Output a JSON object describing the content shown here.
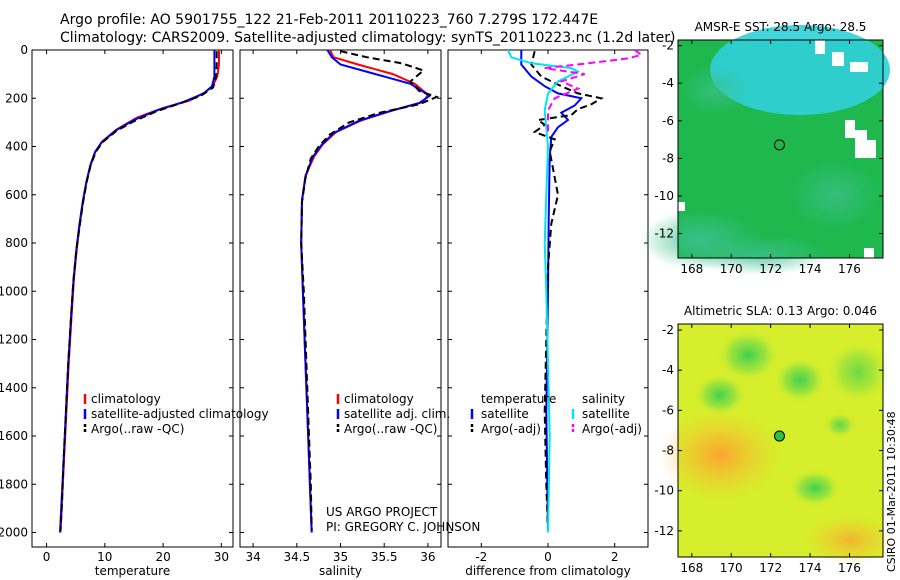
{
  "figure": {
    "title_line1": "Argo profile: AO 5901755_122 21-Feb-2011 20110223_760 7.279S 172.447E",
    "title_line2": "Climatology: CARS2009. Satellite-adjusted climatology: synTS_20110223.nc (1.2d later)",
    "credit_line1": "US ARGO PROJECT",
    "credit_line2": "PI: GREGORY C. JOHNSON",
    "vertical_stamp": "CSIRO 01-Mar-2011 10:30:48"
  },
  "colors": {
    "climatology": "#ff0000",
    "satellite": "#0000ff",
    "argo": "#000000",
    "salinity_satellite": "#00e5ee",
    "salinity_argo": "#ff00ff"
  },
  "chart_data": [
    {
      "id": "temperature",
      "type": "line",
      "xlabel": "temperature",
      "ylabel": "",
      "xlim": [
        -2.5,
        32
      ],
      "ylim": [
        2060,
        0
      ],
      "xticks": [
        0,
        10,
        20,
        30
      ],
      "yticks": [
        0,
        200,
        400,
        600,
        800,
        1000,
        1200,
        1400,
        1600,
        1800,
        2000
      ],
      "legend": {
        "position": "lower-right",
        "entries": [
          "climatology",
          "satellite-adjusted climatology",
          "Argo(..raw -QC)"
        ]
      },
      "series": [
        {
          "name": "climatology",
          "style": "solid",
          "points": [
            [
              29.6,
              0
            ],
            [
              29.6,
              60
            ],
            [
              29.3,
              110
            ],
            [
              28.5,
              150
            ],
            [
              27.2,
              175
            ],
            [
              24.5,
              210
            ],
            [
              20,
              240
            ],
            [
              15.5,
              280
            ],
            [
              12,
              330
            ],
            [
              9.5,
              380
            ],
            [
              8.4,
              420
            ],
            [
              7.6,
              470
            ],
            [
              6.9,
              540
            ],
            [
              6.3,
              620
            ],
            [
              5.7,
              720
            ],
            [
              5.2,
              820
            ],
            [
              4.7,
              950
            ],
            [
              4.3,
              1100
            ],
            [
              3.8,
              1300
            ],
            [
              3.4,
              1500
            ],
            [
              3.0,
              1700
            ],
            [
              2.6,
              1900
            ],
            [
              2.4,
              2000
            ]
          ]
        },
        {
          "name": "satellite-adjusted climatology",
          "style": "solid",
          "points": [
            [
              28.8,
              0
            ],
            [
              28.8,
              60
            ],
            [
              28.8,
              110
            ],
            [
              28.4,
              150
            ],
            [
              27,
              180
            ],
            [
              23.5,
              215
            ],
            [
              19,
              250
            ],
            [
              15,
              290
            ],
            [
              11.8,
              335
            ],
            [
              9.4,
              385
            ],
            [
              8.3,
              425
            ],
            [
              7.5,
              480
            ],
            [
              6.8,
              550
            ],
            [
              6.2,
              630
            ],
            [
              5.6,
              730
            ],
            [
              5.1,
              830
            ],
            [
              4.6,
              960
            ],
            [
              4.2,
              1110
            ],
            [
              3.7,
              1310
            ],
            [
              3.3,
              1510
            ],
            [
              2.9,
              1710
            ],
            [
              2.5,
              1910
            ],
            [
              2.3,
              2000
            ]
          ]
        },
        {
          "name": "Argo(..raw -QC)",
          "style": "dashed",
          "points": [
            [
              29.2,
              5
            ],
            [
              29.2,
              60
            ],
            [
              29.1,
              110
            ],
            [
              28.6,
              155
            ],
            [
              26.5,
              190
            ],
            [
              23,
              220
            ],
            [
              18.8,
              255
            ],
            [
              15,
              295
            ],
            [
              12,
              335
            ],
            [
              9.7,
              380
            ],
            [
              8.5,
              420
            ],
            [
              7.6,
              475
            ],
            [
              6.9,
              545
            ],
            [
              6.3,
              625
            ],
            [
              5.7,
              725
            ],
            [
              5.1,
              830
            ],
            [
              4.6,
              955
            ],
            [
              4.2,
              1110
            ],
            [
              3.7,
              1310
            ],
            [
              3.3,
              1510
            ],
            [
              2.9,
              1710
            ],
            [
              2.6,
              1900
            ],
            [
              2.4,
              1990
            ]
          ]
        }
      ]
    },
    {
      "id": "salinity",
      "type": "line",
      "xlabel": "salinity",
      "ylabel": "",
      "xlim": [
        33.85,
        36.15
      ],
      "ylim": [
        2060,
        0
      ],
      "xticks": [
        34,
        34.5,
        35,
        35.5,
        36
      ],
      "xtick_labels": [
        "34",
        "34.5",
        "35",
        "35.5",
        "36"
      ],
      "legend": {
        "position": "lower-right",
        "entries": [
          "climatology",
          "satellite adj. clim.",
          "Argo(..raw -QC)"
        ]
      },
      "series": [
        {
          "name": "climatology",
          "style": "solid",
          "points": [
            [
              34.88,
              0
            ],
            [
              34.92,
              30
            ],
            [
              35.2,
              60
            ],
            [
              35.6,
              100
            ],
            [
              35.85,
              140
            ],
            [
              36.0,
              185
            ],
            [
              35.95,
              215
            ],
            [
              35.6,
              250
            ],
            [
              35.25,
              290
            ],
            [
              34.95,
              340
            ],
            [
              34.8,
              390
            ],
            [
              34.7,
              440
            ],
            [
              34.6,
              520
            ],
            [
              34.56,
              620
            ],
            [
              34.55,
              800
            ],
            [
              34.57,
              1000
            ],
            [
              34.6,
              1300
            ],
            [
              34.63,
              1600
            ],
            [
              34.65,
              1800
            ],
            [
              34.67,
              2000
            ]
          ]
        },
        {
          "name": "satellite adj. clim.",
          "style": "solid",
          "points": [
            [
              34.85,
              0
            ],
            [
              34.9,
              30
            ],
            [
              35.0,
              60
            ],
            [
              35.4,
              100
            ],
            [
              35.8,
              140
            ],
            [
              36.02,
              190
            ],
            [
              35.9,
              220
            ],
            [
              35.55,
              255
            ],
            [
              35.2,
              295
            ],
            [
              34.92,
              345
            ],
            [
              34.78,
              395
            ],
            [
              34.68,
              445
            ],
            [
              34.6,
              525
            ],
            [
              34.56,
              625
            ],
            [
              34.55,
              800
            ],
            [
              34.57,
              1000
            ],
            [
              34.6,
              1300
            ],
            [
              34.63,
              1600
            ],
            [
              34.65,
              1800
            ],
            [
              34.67,
              2000
            ]
          ]
        },
        {
          "name": "Argo(..raw -QC)",
          "style": "dashed",
          "points": [
            [
              35.0,
              5
            ],
            [
              35.3,
              30
            ],
            [
              35.7,
              55
            ],
            [
              35.95,
              85
            ],
            [
              35.8,
              130
            ],
            [
              35.9,
              170
            ],
            [
              36.1,
              195
            ],
            [
              35.9,
              225
            ],
            [
              35.45,
              260
            ],
            [
              35.1,
              300
            ],
            [
              34.88,
              350
            ],
            [
              34.75,
              400
            ],
            [
              34.66,
              450
            ],
            [
              34.6,
              530
            ],
            [
              34.56,
              630
            ],
            [
              34.55,
              800
            ],
            [
              34.58,
              1000
            ],
            [
              34.61,
              1300
            ],
            [
              34.64,
              1600
            ],
            [
              34.66,
              1800
            ],
            [
              34.67,
              1990
            ]
          ]
        }
      ]
    },
    {
      "id": "difference",
      "type": "line",
      "xlabel": "difference from climatology",
      "ylabel": "",
      "xlim": [
        -3,
        3
      ],
      "ylim": [
        2060,
        0
      ],
      "xticks": [
        -2,
        0,
        2
      ],
      "legend": {
        "position": "lower-right",
        "groups": [
          {
            "header": "temperature",
            "entries": [
              "satellite",
              "Argo(-adj)"
            ]
          },
          {
            "header": "salinity",
            "entries": [
              "satellite",
              "Argo(-adj)"
            ]
          }
        ]
      },
      "series": [
        {
          "name": "temperature satellite",
          "style": "solid",
          "points": [
            [
              -0.8,
              0
            ],
            [
              -0.8,
              60
            ],
            [
              -0.5,
              110
            ],
            [
              -0.1,
              150
            ],
            [
              0.3,
              180
            ],
            [
              1.0,
              200
            ],
            [
              0.8,
              230
            ],
            [
              0.4,
              260
            ],
            [
              0.6,
              290
            ],
            [
              0.3,
              320
            ],
            [
              0.1,
              360
            ],
            [
              0.05,
              450
            ],
            [
              0.02,
              700
            ],
            [
              0.0,
              1000
            ],
            [
              -0.05,
              1500
            ],
            [
              -0.02,
              1800
            ],
            [
              0.0,
              2000
            ]
          ]
        },
        {
          "name": "temperature Argo(-adj)",
          "style": "dashed",
          "points": [
            [
              -0.4,
              5
            ],
            [
              -0.5,
              60
            ],
            [
              -0.2,
              110
            ],
            [
              0.4,
              150
            ],
            [
              0.9,
              180
            ],
            [
              1.6,
              200
            ],
            [
              1.3,
              225
            ],
            [
              0.9,
              245
            ],
            [
              0.7,
              270
            ],
            [
              -0.3,
              290
            ],
            [
              -0.1,
              310
            ],
            [
              -0.4,
              340
            ],
            [
              0.2,
              370
            ],
            [
              0.05,
              420
            ],
            [
              0.3,
              600
            ],
            [
              0.1,
              720
            ],
            [
              0.0,
              900
            ],
            [
              -0.05,
              1200
            ],
            [
              -0.1,
              1500
            ],
            [
              -0.05,
              1800
            ],
            [
              0.0,
              1990
            ]
          ]
        },
        {
          "name": "salinity satellite",
          "style": "solid",
          "points": [
            [
              -1.2,
              0
            ],
            [
              -1.1,
              30
            ],
            [
              -0.5,
              55
            ],
            [
              0.7,
              75
            ],
            [
              0.9,
              90
            ],
            [
              0.3,
              130
            ],
            [
              0.0,
              180
            ],
            [
              -0.1,
              250
            ],
            [
              0.0,
              400
            ],
            [
              -0.05,
              600
            ],
            [
              -0.1,
              800
            ],
            [
              -0.05,
              1000
            ],
            [
              0.0,
              1300
            ],
            [
              0.05,
              1600
            ],
            [
              0.0,
              2000
            ]
          ]
        },
        {
          "name": "salinity Argo(-adj)",
          "style": "dashed",
          "points": [
            [
              2.6,
              0
            ],
            [
              2.8,
              20
            ],
            [
              2.4,
              35
            ],
            [
              1.2,
              55
            ],
            [
              -0.1,
              75
            ],
            [
              1.1,
              100
            ],
            [
              0.4,
              130
            ],
            [
              0.9,
              160
            ],
            [
              0.2,
              200
            ],
            [
              0.0,
              250
            ],
            [
              0.0,
              350
            ]
          ]
        }
      ]
    },
    {
      "id": "sst_map",
      "type": "heatmap",
      "title": "AMSR-E SST: 28.5 Argo: 28.5",
      "xticks": [
        168,
        170,
        172,
        174,
        176
      ],
      "yticks": [
        -2,
        -4,
        -6,
        -8,
        -10,
        -12
      ],
      "xlim": [
        167.3,
        177.7
      ],
      "ylim": [
        -13.3,
        -1.7
      ],
      "marker": [
        172.447,
        -7.279
      ]
    },
    {
      "id": "sla_map",
      "type": "heatmap",
      "title": "Altimetric SLA: 0.13 Argo: 0.046",
      "xticks": [
        168,
        170,
        172,
        174,
        176
      ],
      "yticks": [
        -2,
        -4,
        -6,
        -8,
        -10,
        -12
      ],
      "xlim": [
        167.3,
        177.7
      ],
      "ylim": [
        -13.3,
        -1.7
      ],
      "marker": [
        172.447,
        -7.279
      ]
    }
  ]
}
